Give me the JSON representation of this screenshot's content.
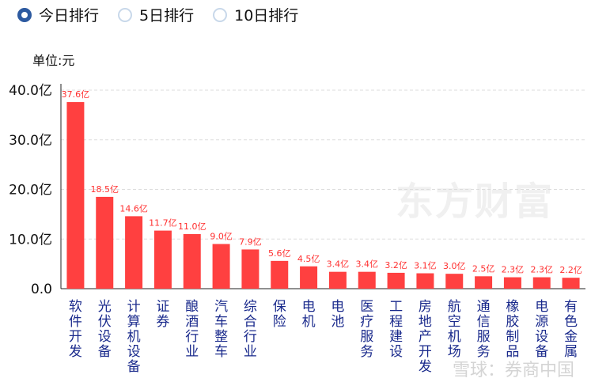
{
  "radios": [
    {
      "label": "今日排行",
      "selected": true
    },
    {
      "label": "5日排行",
      "selected": false
    },
    {
      "label": "10日排行",
      "selected": false
    }
  ],
  "unit_label": "单位:元",
  "watermarks": {
    "eastmoney": "东方财富",
    "xueqiu": "雪球：券商中国"
  },
  "colors": {
    "bar": "#ff4040",
    "label": "#ff3030",
    "category": "#1a2a8c",
    "selected_radio": "#2d5aa0"
  },
  "chart_data": {
    "type": "bar",
    "categories": [
      "软件开发",
      "光伏设备",
      "计算机设备",
      "证券",
      "酿酒行业",
      "汽车整车",
      "综合行业",
      "保险",
      "电机",
      "电池",
      "医疗服务",
      "工程建设",
      "房地产开发",
      "航空机场",
      "通信服务",
      "橡胶制品",
      "电源设备",
      "有色金属"
    ],
    "values": [
      37.6,
      18.5,
      14.6,
      11.7,
      11.0,
      9.0,
      7.9,
      5.6,
      4.5,
      3.4,
      3.4,
      3.2,
      3.1,
      3.0,
      2.5,
      2.3,
      2.3,
      2.2
    ],
    "data_labels": [
      "37.6亿",
      "18.5亿",
      "14.6亿",
      "11.7亿",
      "11.0亿",
      "9.0亿",
      "7.9亿",
      "5.6亿",
      "4.5亿",
      "3.4亿",
      "3.4亿",
      "3.2亿",
      "3.1亿",
      "3.0亿",
      "2.5亿",
      "2.3亿",
      "2.3亿",
      "2.2亿"
    ],
    "yticks": [
      "0.0",
      "10.0亿",
      "20.0亿",
      "30.0亿",
      "40.0亿"
    ],
    "ylim": [
      0,
      40
    ],
    "grid": "horizontal dashed",
    "ylabel": "单位:元"
  }
}
